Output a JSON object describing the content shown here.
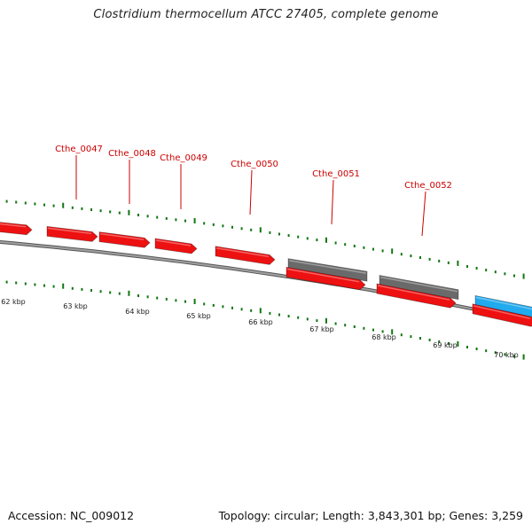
{
  "title": "Clostridium thermocellum ATCC 27405, complete genome",
  "footer": {
    "accession": "Accession: NC_009012",
    "summary": "Topology: circular; Length: 3,843,301 bp; Genes: 3,259"
  },
  "colors": {
    "cds": "#ee1111",
    "gray_feature": "#6a6a6a",
    "rna_feature": "#22aaee",
    "label": "#cc0000",
    "tick": "#117711",
    "backbone": "#808080"
  },
  "gene_labels": [
    "Cthe_0047",
    "Cthe_0048",
    "Cthe_0049",
    "Cthe_0050",
    "Cthe_0051",
    "Cthe_0052"
  ],
  "scale_labels": [
    "62 kbp",
    "63 kbp",
    "64 kbp",
    "65 kbp",
    "66 kbp",
    "67 kbp",
    "68 kbp",
    "69 kbp",
    "70 kbp"
  ]
}
